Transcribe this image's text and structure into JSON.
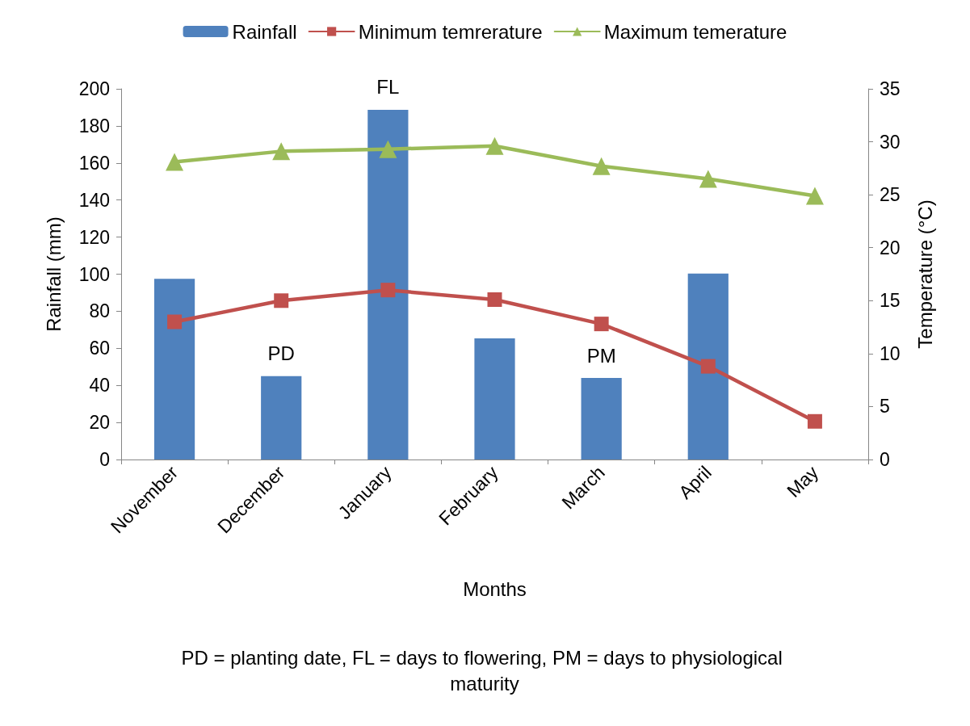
{
  "chart_data": {
    "type": "bar",
    "categories": [
      "November",
      "December",
      "January",
      "February",
      "March",
      "April",
      "May"
    ],
    "series": [
      {
        "name": "Rainfall",
        "color": "#4f81bd",
        "values": [
          97.5,
          45,
          188.7,
          65.4,
          44,
          100.3,
          null
        ]
      },
      {
        "name": "Minimum temrerature",
        "type": "line",
        "axis": "y2",
        "marker": "square",
        "color": "#c0504d",
        "values": [
          13.0,
          15.0,
          16.0,
          15.1,
          12.8,
          8.8,
          3.6
        ]
      },
      {
        "name": "Maximum temerature",
        "type": "line",
        "axis": "y2",
        "marker": "triangle",
        "color": "#9bbb59",
        "values": [
          28.1,
          29.1,
          29.3,
          29.6,
          27.7,
          26.5,
          24.9
        ]
      }
    ],
    "xlabel": "Months",
    "ylabel": "Rainfall (mm)",
    "y2label": "Temperature (°C)",
    "ylim": [
      0,
      200
    ],
    "yticks": [
      0,
      20,
      40,
      60,
      80,
      100,
      120,
      140,
      160,
      180,
      200
    ],
    "y2lim": [
      0,
      35
    ],
    "y2ticks": [
      0,
      5,
      10,
      15,
      20,
      25,
      30,
      35
    ],
    "annotations": [
      {
        "text": "PD",
        "x": "December",
        "y": 45
      },
      {
        "text": "FL",
        "x": "January",
        "y": 188.7
      },
      {
        "text": "PM",
        "x": "March",
        "y": 44
      },
      "PD = planting date, FL = days to flowering, PM = days to physiological maturity"
    ],
    "legend": "top",
    "grid": false,
    "line_style": "solid"
  }
}
